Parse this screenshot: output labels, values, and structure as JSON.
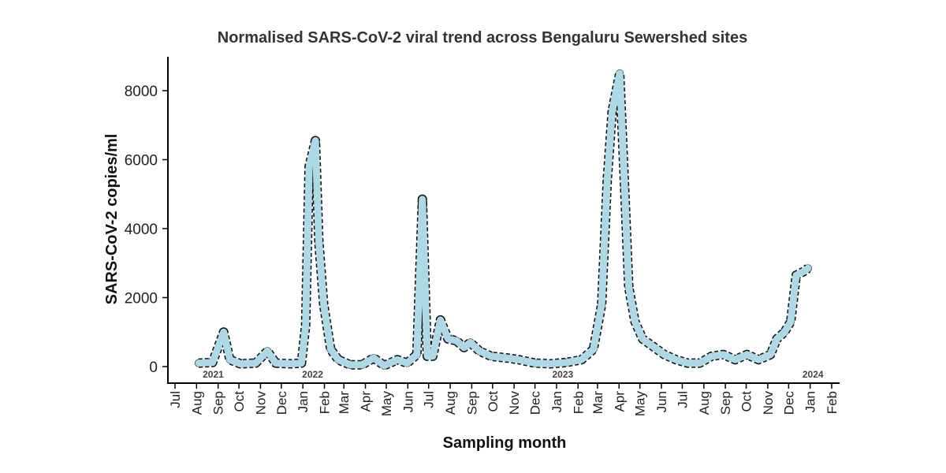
{
  "chart_data": {
    "type": "line",
    "title": "Normalised SARS-CoV-2 viral trend across Bengaluru Sewershed sites",
    "xlabel": "Sampling month",
    "ylabel": "SARS-CoV-2 copies/ml",
    "xlim": [
      "2021-07-01",
      "2024-02-01"
    ],
    "ylim": [
      -300,
      9000
    ],
    "yticks": [
      0,
      2000,
      4000,
      6000,
      8000
    ],
    "xticks": [
      {
        "date": "2021-07-01",
        "label": "Jul"
      },
      {
        "date": "2021-08-01",
        "label": "Aug"
      },
      {
        "date": "2021-09-01",
        "label": "Sep"
      },
      {
        "date": "2021-10-01",
        "label": "Oct"
      },
      {
        "date": "2021-11-01",
        "label": "Nov"
      },
      {
        "date": "2021-12-01",
        "label": "Dec"
      },
      {
        "date": "2022-01-01",
        "label": "Jan"
      },
      {
        "date": "2022-02-01",
        "label": "Feb"
      },
      {
        "date": "2022-03-01",
        "label": "Mar"
      },
      {
        "date": "2022-04-01",
        "label": "Apr"
      },
      {
        "date": "2022-05-01",
        "label": "May"
      },
      {
        "date": "2022-06-01",
        "label": "Jun"
      },
      {
        "date": "2022-07-01",
        "label": "Jul"
      },
      {
        "date": "2022-08-01",
        "label": "Aug"
      },
      {
        "date": "2022-09-01",
        "label": "Sep"
      },
      {
        "date": "2022-10-01",
        "label": "Oct"
      },
      {
        "date": "2022-11-01",
        "label": "Nov"
      },
      {
        "date": "2022-12-01",
        "label": "Dec"
      },
      {
        "date": "2023-01-01",
        "label": "Jan"
      },
      {
        "date": "2023-02-01",
        "label": "Feb"
      },
      {
        "date": "2023-03-01",
        "label": "Mar"
      },
      {
        "date": "2023-04-01",
        "label": "Apr"
      },
      {
        "date": "2023-05-01",
        "label": "May"
      },
      {
        "date": "2023-06-01",
        "label": "Jun"
      },
      {
        "date": "2023-07-01",
        "label": "Jul"
      },
      {
        "date": "2023-08-01",
        "label": "Aug"
      },
      {
        "date": "2023-09-01",
        "label": "Sep"
      },
      {
        "date": "2023-10-01",
        "label": "Oct"
      },
      {
        "date": "2023-11-01",
        "label": "Nov"
      },
      {
        "date": "2023-12-01",
        "label": "Dec"
      },
      {
        "date": "2024-01-01",
        "label": "Jan"
      },
      {
        "date": "2024-02-01",
        "label": "Feb"
      }
    ],
    "year_labels": [
      {
        "date": "2021-08-25",
        "label": "2021"
      },
      {
        "date": "2022-01-15",
        "label": "2022"
      },
      {
        "date": "2023-01-10",
        "label": "2023"
      },
      {
        "date": "2024-01-05",
        "label": "2024"
      }
    ],
    "grid": false,
    "line_color": "#add8e6",
    "point_color": "#000000",
    "series": [
      {
        "x": [
          "2021-08-04",
          "2021-08-24",
          "2021-09-09",
          "2021-09-18",
          "2021-10-03",
          "2021-10-25",
          "2021-11-11",
          "2021-11-23",
          "2021-12-15",
          "2021-12-30",
          "2022-01-05",
          "2022-01-10",
          "2022-01-19",
          "2022-01-24",
          "2022-01-31",
          "2022-02-10",
          "2022-02-21",
          "2022-03-10",
          "2022-03-27",
          "2022-04-13",
          "2022-04-28",
          "2022-05-17",
          "2022-05-31",
          "2022-06-14",
          "2022-06-22",
          "2022-06-29",
          "2022-07-07",
          "2022-07-18",
          "2022-07-29",
          "2022-08-10",
          "2022-08-21",
          "2022-08-30",
          "2022-09-12",
          "2022-09-29",
          "2022-10-22",
          "2022-11-08",
          "2022-12-01",
          "2022-12-23",
          "2023-01-15",
          "2023-02-06",
          "2023-02-23",
          "2023-03-07",
          "2023-03-15",
          "2023-03-22",
          "2023-04-02",
          "2023-04-09",
          "2023-04-15",
          "2023-04-24",
          "2023-05-05",
          "2023-05-19",
          "2023-06-05",
          "2023-06-22",
          "2023-07-09",
          "2023-07-26",
          "2023-08-12",
          "2023-08-29",
          "2023-09-15",
          "2023-10-02",
          "2023-10-19",
          "2023-11-05",
          "2023-11-14",
          "2023-11-25",
          "2023-12-04",
          "2023-12-12",
          "2023-12-22",
          "2023-12-29"
        ],
        "y": [
          100,
          120,
          1000,
          200,
          80,
          100,
          450,
          100,
          80,
          100,
          1200,
          5800,
          6550,
          3600,
          1800,
          500,
          200,
          50,
          50,
          250,
          30,
          200,
          100,
          350,
          4850,
          300,
          300,
          1350,
          800,
          750,
          550,
          700,
          450,
          300,
          250,
          200,
          100,
          80,
          120,
          200,
          500,
          1800,
          5400,
          7400,
          8500,
          5200,
          2300,
          1300,
          800,
          600,
          350,
          200,
          100,
          100,
          300,
          350,
          200,
          350,
          200,
          350,
          800,
          1000,
          1300,
          2650,
          2750,
          2850
        ]
      }
    ]
  }
}
